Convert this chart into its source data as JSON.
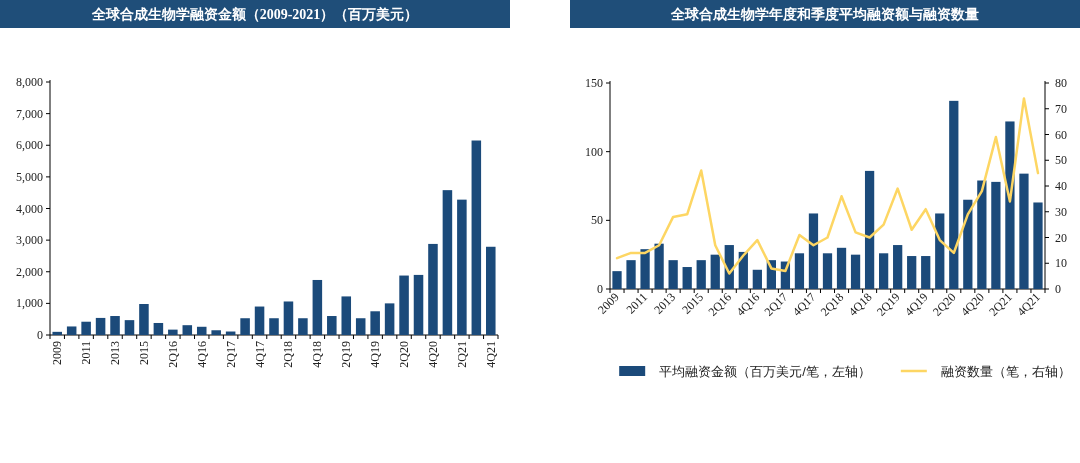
{
  "chart_data": [
    {
      "type": "bar",
      "title": "全球合成生物学融资金额（2009-2021）（百万美元）",
      "categories": [
        "2009",
        null,
        "2011",
        null,
        "2013",
        null,
        "2015",
        null,
        "2Q16",
        null,
        "4Q16",
        null,
        "2Q17",
        null,
        "4Q17",
        null,
        "2Q18",
        null,
        "4Q18",
        null,
        "2Q19",
        null,
        "4Q19",
        null,
        "2Q20",
        null,
        "4Q20",
        null,
        "2Q21",
        null,
        "4Q21"
      ],
      "values": [
        100,
        270,
        420,
        540,
        600,
        470,
        980,
        380,
        170,
        310,
        260,
        150,
        110,
        530,
        900,
        530,
        1060,
        530,
        1740,
        600,
        1220,
        530,
        750,
        1000,
        1880,
        1900,
        2880,
        4580,
        4280,
        6150,
        2790
      ],
      "color": "#1b4a7a",
      "ylim": [
        0,
        8000
      ],
      "yticks": [
        0,
        {
          "value": 1000,
          "label": "1,000"
        },
        {
          "value": 2000,
          "label": "2,000"
        },
        {
          "value": 3000,
          "label": "3,000"
        },
        {
          "value": 4000,
          "label": "4,000"
        },
        {
          "value": 5000,
          "label": "5,000"
        },
        {
          "value": 6000,
          "label": "6,000"
        },
        {
          "value": 7000,
          "label": "7,000"
        },
        {
          "value": 8000,
          "label": "8,000"
        }
      ]
    },
    {
      "type": "bar",
      "title": "全球合成生物学年度和季度平均融资额与融资数量",
      "categories": [
        "2009",
        null,
        "2011",
        null,
        "2013",
        null,
        "2015",
        null,
        "2Q16",
        null,
        "4Q16",
        null,
        "2Q17",
        null,
        "4Q17",
        null,
        "2Q18",
        null,
        "4Q18",
        null,
        "2Q19",
        null,
        "4Q19",
        null,
        "2Q20",
        null,
        "4Q20",
        null,
        "2Q21",
        null,
        "4Q21"
      ],
      "series": [
        {
          "name": "平均融资金额（百万美元/笔，左轴）",
          "color": "#1b4a7a",
          "values": [
            13,
            21,
            29,
            33,
            21,
            16,
            21,
            25,
            32,
            27,
            14,
            21,
            20,
            26,
            55,
            26,
            30,
            25,
            86,
            26,
            32,
            24,
            24,
            55,
            137,
            65,
            79,
            78,
            122,
            84,
            63
          ]
        },
        {
          "name": "融资数量（笔，右轴）",
          "type": "line",
          "axis": "y2",
          "color": "#fdd663",
          "values": [
            12,
            14,
            14,
            17,
            28,
            29,
            46,
            17,
            6,
            13,
            19,
            8,
            7,
            21,
            17,
            20,
            36,
            22,
            20,
            25,
            39,
            23,
            31,
            19,
            14,
            29,
            38,
            59,
            34,
            74,
            45
          ]
        }
      ],
      "ylim": [
        0,
        150
      ],
      "yticks": [
        0,
        50,
        100,
        150
      ],
      "y2lim": [
        0,
        80
      ],
      "y2ticks": [
        0,
        10,
        20,
        30,
        40,
        50,
        60,
        70,
        80
      ],
      "legend": "bottom"
    }
  ]
}
